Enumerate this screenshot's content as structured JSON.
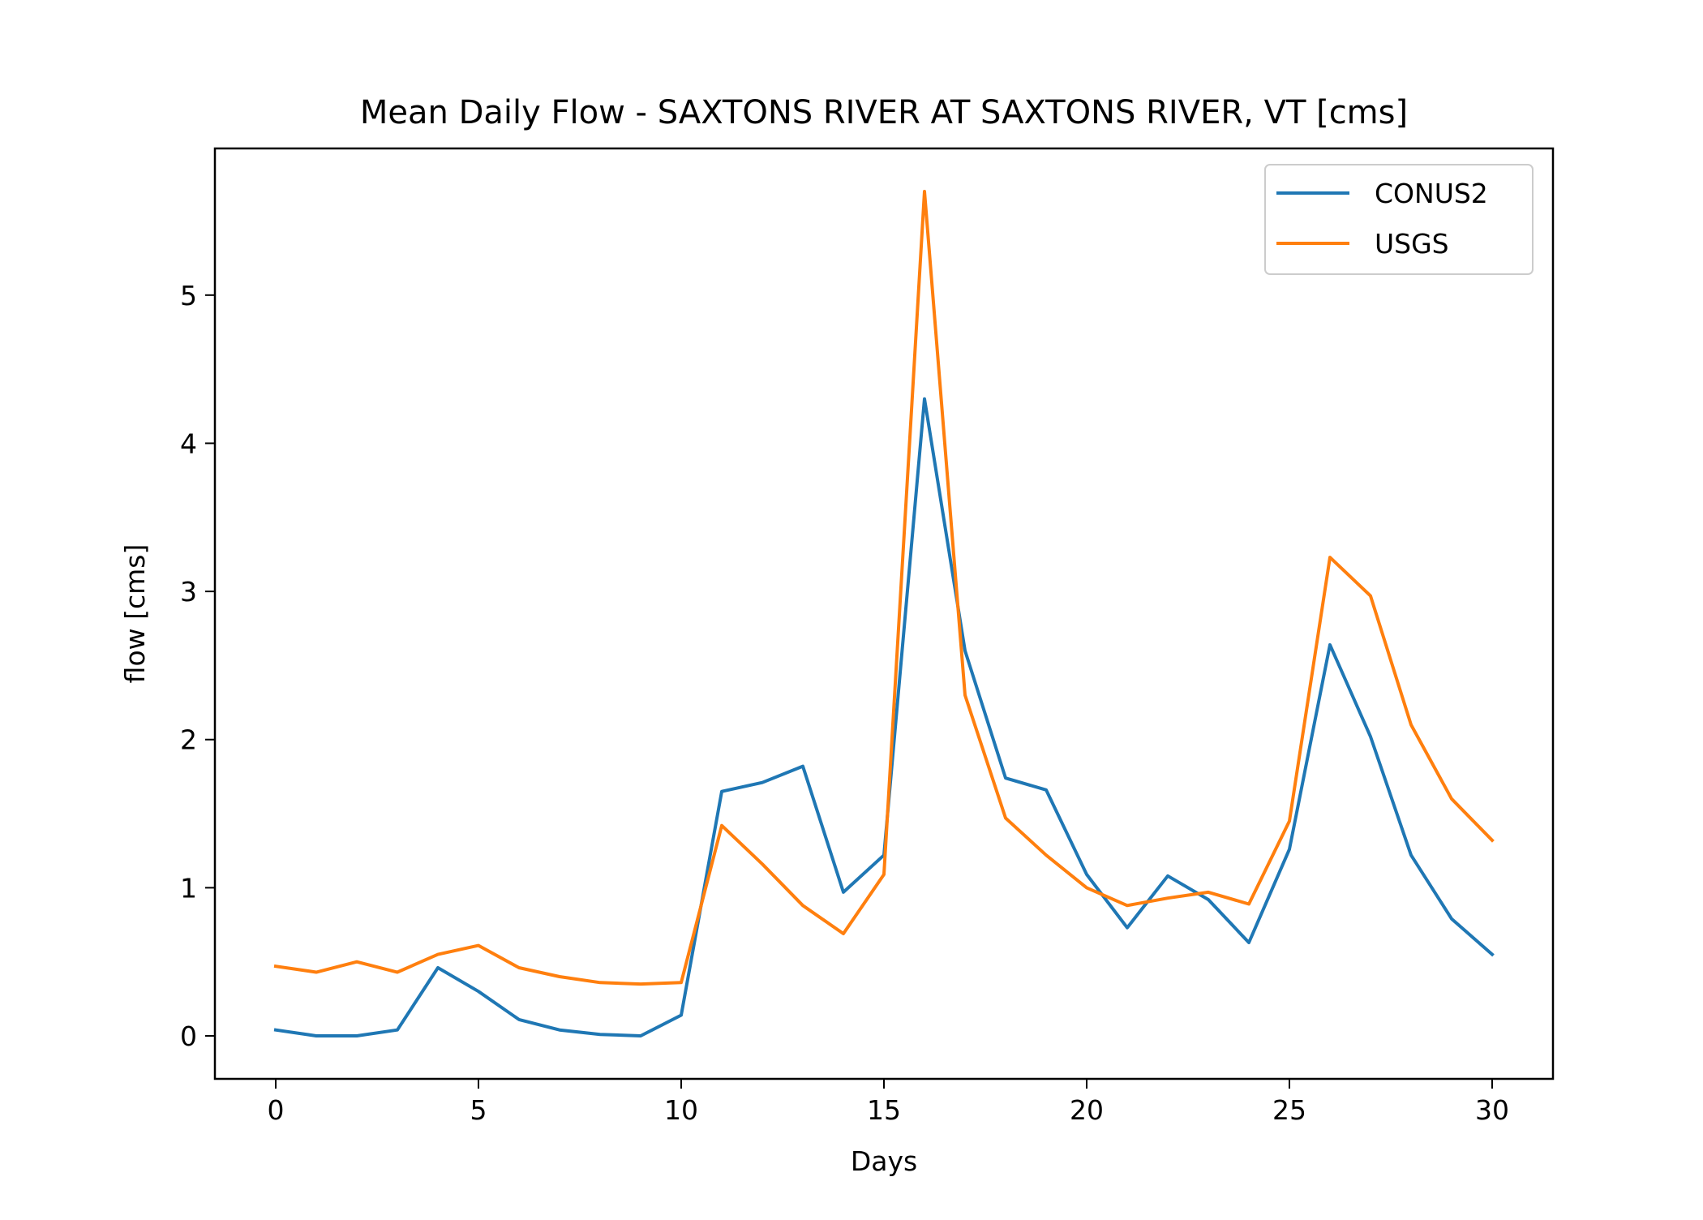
{
  "chart_data": {
    "type": "line",
    "title": "Mean Daily Flow - SAXTONS RIVER AT SAXTONS RIVER, VT [cms]",
    "xlabel": "Days",
    "ylabel": "flow [cms]",
    "xlim": [
      -1.5,
      31.5
    ],
    "ylim": [
      -0.29,
      5.99
    ],
    "xticks": [
      0,
      5,
      10,
      15,
      20,
      25,
      30
    ],
    "yticks": [
      0,
      1,
      2,
      3,
      4,
      5
    ],
    "grid": false,
    "legend_position": "top-right",
    "x": [
      0,
      1,
      2,
      3,
      4,
      5,
      6,
      7,
      8,
      9,
      10,
      11,
      12,
      13,
      14,
      15,
      16,
      17,
      18,
      19,
      20,
      21,
      22,
      23,
      24,
      25,
      26,
      27,
      28,
      29,
      30
    ],
    "series": [
      {
        "name": "CONUS2",
        "color": "#1f77b4",
        "values": [
          0.04,
          0.0,
          0.0,
          0.04,
          0.46,
          0.3,
          0.11,
          0.04,
          0.01,
          0.0,
          0.14,
          1.65,
          1.71,
          1.82,
          0.97,
          1.22,
          4.3,
          2.6,
          1.74,
          1.66,
          1.09,
          0.73,
          1.08,
          0.92,
          0.63,
          1.26,
          2.64,
          2.02,
          1.22,
          0.79,
          0.55
        ]
      },
      {
        "name": "USGS",
        "color": "#ff7f0e",
        "values": [
          0.47,
          0.43,
          0.5,
          0.43,
          0.55,
          0.61,
          0.46,
          0.4,
          0.36,
          0.35,
          0.36,
          1.42,
          1.16,
          0.88,
          0.69,
          1.09,
          5.7,
          2.3,
          1.47,
          1.22,
          1.0,
          0.88,
          0.93,
          0.97,
          0.89,
          1.45,
          3.23,
          2.97,
          2.1,
          1.6,
          1.32
        ]
      }
    ]
  }
}
